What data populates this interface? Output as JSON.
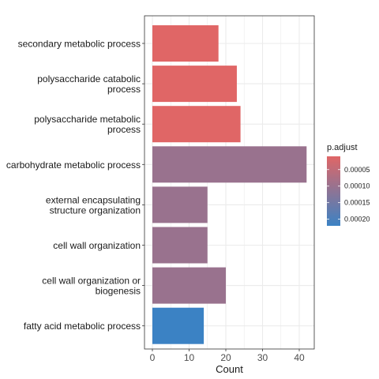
{
  "chart_data": {
    "type": "bar",
    "orientation": "horizontal",
    "categories": [
      "secondary metabolic process",
      "polysaccharide catabolic\nprocess",
      "polysaccharide metabolic\nprocess",
      "carbohydrate metabolic process",
      "external encapsulating\nstructure organization",
      "cell wall organization",
      "cell wall organization or\nbiogenesis",
      "fatty acid metabolic process"
    ],
    "values": [
      18,
      23,
      24,
      42,
      15,
      15,
      20,
      14
    ],
    "p_adjust": [
      1e-05,
      1e-05,
      1e-05,
      0.0001,
      0.0001,
      0.0001,
      0.0001,
      0.00022
    ],
    "xlabel": "Count",
    "ylabel": "",
    "title": "",
    "xlim": [
      -1.5,
      44
    ],
    "x_ticks": [
      0,
      10,
      20,
      30,
      40
    ],
    "x_tick_labels": [
      "0",
      "10",
      "20",
      "30",
      "40"
    ],
    "grid": true,
    "legend": {
      "title": "p.adjust",
      "placement": "right",
      "range": [
        1e-05,
        0.00022
      ],
      "ticks": [
        5e-05,
        0.0001,
        0.00015,
        0.0002
      ],
      "tick_labels": [
        "0.00005",
        "0.00010",
        "0.00015",
        "0.00020"
      ],
      "color_low": "#e06666",
      "color_high": "#3b82c4"
    },
    "colors": {
      "panel_border": "#333333",
      "grid": "#ebebeb"
    }
  }
}
